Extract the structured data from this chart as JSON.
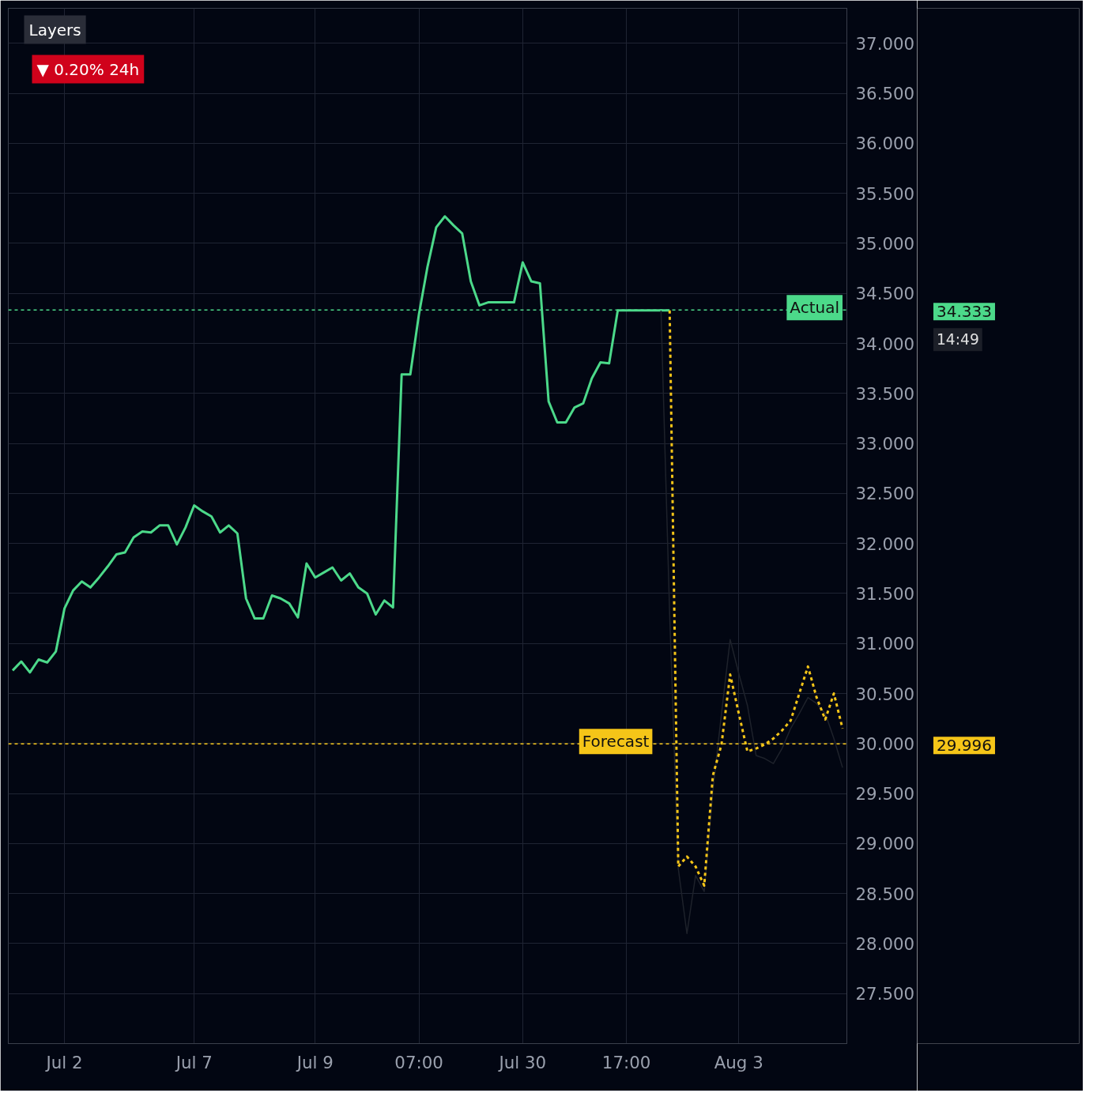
{
  "chart_data": {
    "type": "line",
    "grid": true,
    "ylim": [
      27.0,
      37.35
    ],
    "categories": [
      null,
      null,
      null,
      null,
      null,
      null,
      "Jul 2",
      null,
      null,
      null,
      null,
      null,
      null,
      null,
      null,
      null,
      null,
      null,
      null,
      null,
      null,
      "Jul 7",
      null,
      null,
      null,
      null,
      null,
      null,
      null,
      null,
      null,
      null,
      null,
      null,
      null,
      "Jul 9",
      null,
      null,
      null,
      null,
      null,
      null,
      null,
      null,
      null,
      null,
      null,
      "07:00",
      null,
      null,
      null,
      null,
      null,
      null,
      null,
      null,
      null,
      null,
      null,
      "Jul 30",
      null,
      null,
      null,
      null,
      null,
      null,
      null,
      null,
      null,
      null,
      null,
      "17:00",
      null,
      null,
      null,
      null,
      null,
      null,
      null,
      null,
      null,
      null,
      null,
      null,
      "Aug 3",
      null,
      null,
      null,
      null,
      null,
      null,
      null,
      null,
      null,
      null,
      null,
      null
    ],
    "yticks": [
      {
        "value": 27.5,
        "label": "27.500"
      },
      {
        "value": 28,
        "label": "28.000"
      },
      {
        "value": 28.5,
        "label": "28.500"
      },
      {
        "value": 29,
        "label": "29.000"
      },
      {
        "value": 29.5,
        "label": "29.500"
      },
      {
        "value": 30,
        "label": "30.000"
      },
      {
        "value": 30.5,
        "label": "30.500"
      },
      {
        "value": 31,
        "label": "31.000"
      },
      {
        "value": 31.5,
        "label": "31.500"
      },
      {
        "value": 32,
        "label": "32.000"
      },
      {
        "value": 32.5,
        "label": "32.500"
      },
      {
        "value": 33,
        "label": "33.000"
      },
      {
        "value": 33.5,
        "label": "33.500"
      },
      {
        "value": 34,
        "label": "34.000"
      },
      {
        "value": 34.5,
        "label": "34.500"
      },
      {
        "value": 35,
        "label": "35.000"
      },
      {
        "value": 35.5,
        "label": "35.500"
      },
      {
        "value": 36,
        "label": "36.000"
      },
      {
        "value": 36.5,
        "label": "36.500"
      },
      {
        "value": 37,
        "label": "37.000"
      }
    ],
    "series": [
      {
        "color": "#4cd98a",
        "line_style": "solid",
        "values": [
          30.73,
          30.82,
          30.71,
          30.84,
          30.81,
          30.92,
          31.35,
          31.53,
          31.62,
          31.56,
          31.66,
          31.77,
          31.89,
          31.91,
          32.06,
          32.12,
          32.11,
          32.18,
          32.18,
          31.99,
          32.16,
          32.38,
          32.32,
          32.27,
          32.11,
          32.18,
          32.1,
          31.45,
          31.25,
          31.25,
          31.48,
          31.45,
          31.4,
          31.26,
          31.8,
          31.66,
          31.71,
          31.76,
          31.63,
          31.7,
          31.56,
          31.5,
          31.29,
          31.43,
          31.36,
          33.69,
          33.69,
          34.29,
          34.77,
          35.16,
          35.27,
          35.18,
          35.1,
          34.62,
          34.38,
          34.41,
          34.41,
          34.41,
          34.41,
          34.81,
          34.62,
          34.6,
          33.42,
          33.21,
          33.21,
          33.36,
          33.4,
          33.65,
          33.81,
          33.8,
          34.33,
          34.33,
          34.33,
          34.33,
          34.33,
          34.33,
          34.33,
          null,
          null,
          null,
          null,
          null,
          null,
          null,
          null,
          null,
          null,
          null,
          null,
          null,
          null,
          null,
          null,
          null,
          null,
          null,
          null
        ]
      },
      {
        "color": "#1e222b",
        "line_style": "solid",
        "values": [
          null,
          null,
          null,
          null,
          null,
          null,
          null,
          null,
          null,
          null,
          null,
          null,
          null,
          null,
          null,
          null,
          null,
          null,
          null,
          null,
          null,
          null,
          null,
          null,
          null,
          null,
          null,
          null,
          null,
          null,
          null,
          null,
          null,
          null,
          null,
          null,
          null,
          null,
          null,
          null,
          null,
          null,
          null,
          null,
          null,
          null,
          null,
          null,
          null,
          null,
          null,
          null,
          null,
          null,
          null,
          null,
          null,
          null,
          null,
          null,
          null,
          null,
          null,
          null,
          null,
          null,
          null,
          null,
          null,
          null,
          null,
          null,
          null,
          null,
          null,
          34.33,
          31.3,
          28.75,
          28.1,
          28.68,
          28.52,
          29.53,
          30.3,
          31.04,
          30.7,
          30.38,
          29.88,
          29.85,
          29.8,
          29.95,
          30.15,
          30.3,
          30.46,
          30.4,
          30.3,
          30.05,
          29.76
        ]
      },
      {
        "color": "#f5c518",
        "line_style": "dotted",
        "values": [
          null,
          null,
          null,
          null,
          null,
          null,
          null,
          null,
          null,
          null,
          null,
          null,
          null,
          null,
          null,
          null,
          null,
          null,
          null,
          null,
          null,
          null,
          null,
          null,
          null,
          null,
          null,
          null,
          null,
          null,
          null,
          null,
          null,
          null,
          null,
          null,
          null,
          null,
          null,
          null,
          null,
          null,
          null,
          null,
          null,
          null,
          null,
          null,
          null,
          null,
          null,
          null,
          null,
          null,
          null,
          null,
          null,
          null,
          null,
          null,
          null,
          null,
          null,
          null,
          null,
          null,
          null,
          null,
          null,
          null,
          null,
          null,
          null,
          null,
          null,
          null,
          34.33,
          28.77,
          28.87,
          28.77,
          28.58,
          29.68,
          29.99,
          30.69,
          30.3,
          29.92,
          29.95,
          29.99,
          30.05,
          30.13,
          30.23,
          30.5,
          30.77,
          30.46,
          30.24,
          30.5,
          30.15
        ]
      }
    ],
    "ref_lines": [
      {
        "axis": "y",
        "value": 34.333,
        "label": "Actual",
        "color": "#4cd98a",
        "line_style": "dotted"
      },
      {
        "axis": "y",
        "value": 29.996,
        "label": "Forecast",
        "color": "#f5c518",
        "line_style": "dotted"
      }
    ],
    "annotations": [
      "Layers",
      "▼ 0.20% 24h",
      "14:49",
      "34.333",
      "29.996"
    ]
  }
}
